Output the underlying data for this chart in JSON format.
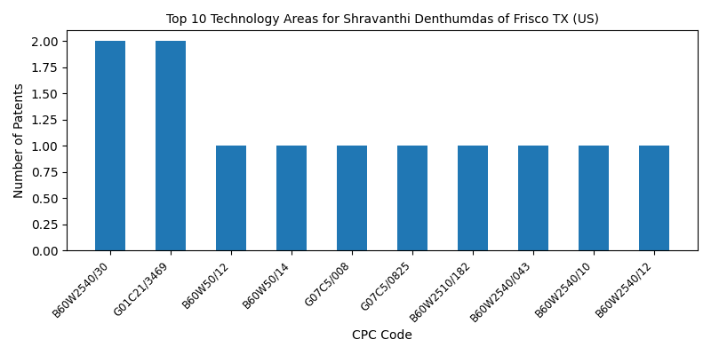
{
  "title": "Top 10 Technology Areas for Shravanthi Denthumdas of Frisco TX (US)",
  "xlabel": "CPC Code",
  "ylabel": "Number of Patents",
  "categories": [
    "B60W2540/30",
    "G01C21/3469",
    "B60W50/12",
    "B60W50/14",
    "G07C5/008",
    "G07C5/0825",
    "B60W2510/182",
    "B60W2540/043",
    "B60W2540/10",
    "B60W2540/12"
  ],
  "values": [
    2,
    2,
    1,
    1,
    1,
    1,
    1,
    1,
    1,
    1
  ],
  "bar_color": "#2077b4",
  "bar_width": 0.5,
  "ylim": [
    0,
    2.1
  ],
  "yticks": [
    0.0,
    0.25,
    0.5,
    0.75,
    1.0,
    1.25,
    1.5,
    1.75,
    2.0
  ],
  "title_fontsize": 10,
  "label_fontsize": 10,
  "tick_fontsize": 8.5,
  "xtick_rotation": 45,
  "figsize": [
    8.0,
    4.0
  ],
  "dpi": 100
}
